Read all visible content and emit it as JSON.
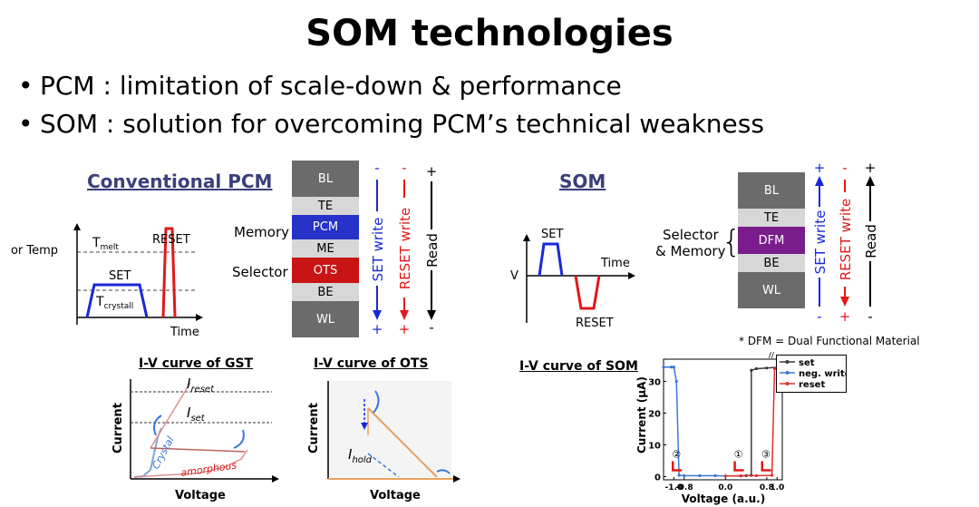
{
  "title": "SOM technologies",
  "bullets": [
    "PCM : limitation of scale-down & performance",
    "SOM : solution for overcoming PCM’s technical weakness"
  ],
  "colors": {
    "blue": "#1a28d8",
    "red": "#e01818",
    "heading": "#3b3f7a",
    "dark_gray": "#6b6b6b",
    "light_gray": "#d7d7d7",
    "pcm_blue": "#2632c8",
    "ots_red": "#c91414",
    "dfm_purple": "#7a1c8c"
  },
  "pcm": {
    "heading": "Conventional PCM",
    "pulse": {
      "y_label": "I or Temp",
      "t_melt": "T",
      "t_melt_sub": "melt",
      "t_crystall": "T",
      "t_crystall_sub": "crystall",
      "set": "SET",
      "reset": "RESET",
      "time": "Time"
    },
    "stack": {
      "layers": [
        "BL",
        "TE",
        "PCM",
        "ME",
        "OTS",
        "BE",
        "WL"
      ],
      "memory_label": "Memory",
      "selector_label": "Selector",
      "arrows": [
        {
          "label": "SET write",
          "top_sign": "-",
          "bottom_sign": "+"
        },
        {
          "label": "RESET write",
          "top_sign": "-",
          "bottom_sign": "+"
        },
        {
          "label": "Read",
          "top_sign": "+",
          "bottom_sign": "-"
        }
      ]
    },
    "gst": {
      "heading": "I-V curve of GST",
      "i_reset": "I",
      "i_reset_sub": "reset",
      "i_set": "I",
      "i_set_sub": "set",
      "crystal": "Crystal",
      "amorphous": "amorphous",
      "xlabel": "Voltage",
      "ylabel": "Current"
    },
    "ots": {
      "heading": "I-V curve of OTS",
      "i_hold": "I",
      "i_hold_sub": "hold",
      "xlabel": "Voltage",
      "ylabel": "Current"
    }
  },
  "som": {
    "heading": "SOM",
    "pulse": {
      "v": "V",
      "set": "SET",
      "reset": "RESET",
      "time": "Time"
    },
    "stack": {
      "layers": [
        "BL",
        "TE",
        "DFM",
        "BE",
        "WL"
      ],
      "selector_memory_label_1": "Selector",
      "selector_memory_label_2": "& Memory",
      "arrows": [
        {
          "label": "SET write",
          "top_sign": "+",
          "bottom_sign": "-"
        },
        {
          "label": "RESET write",
          "top_sign": "-",
          "bottom_sign": "+"
        },
        {
          "label": "Read",
          "top_sign": "+",
          "bottom_sign": "-"
        }
      ],
      "footnote": "* DFM = Dual Functional Material"
    },
    "iv_heading": "I-V curve of SOM"
  },
  "chart_data": {
    "type": "line",
    "title": "I-V curve of SOM",
    "xlabel": "Voltage (a.u.)",
    "ylabel": "Current (μA)",
    "xlim": [
      -1.2,
      1.1
    ],
    "ylim": [
      -1,
      37
    ],
    "xticks": [
      -1.0,
      -0.8,
      0,
      0.8,
      1.0
    ],
    "yticks": [
      0,
      10,
      20,
      30
    ],
    "series": [
      {
        "name": "set",
        "color": "#3a3a3a",
        "x": [
          0.0,
          0.3,
          0.4,
          0.5,
          0.5,
          0.6,
          0.8,
          1.05
        ],
        "y": [
          0.2,
          0.2,
          0.3,
          0.4,
          33.5,
          34,
          34.2,
          34.5
        ]
      },
      {
        "name": "neg. write",
        "color": "#3c78d8",
        "x": [
          -1.2,
          -1.05,
          -1.0,
          -0.95,
          -0.9,
          -0.8,
          -0.5,
          -0.2,
          0.0
        ],
        "y": [
          34.5,
          34.5,
          34.5,
          30,
          0.4,
          0.3,
          0.3,
          0.3,
          0.2
        ]
      },
      {
        "name": "reset",
        "color": "#e03030",
        "x": [
          0.0,
          0.3,
          0.6,
          0.9,
          0.95,
          1.0,
          1.05
        ],
        "y": [
          0.2,
          0.3,
          0.3,
          0.4,
          34,
          34.2,
          34.5
        ]
      }
    ],
    "annotations": [
      "①",
      "②",
      "③"
    ]
  }
}
